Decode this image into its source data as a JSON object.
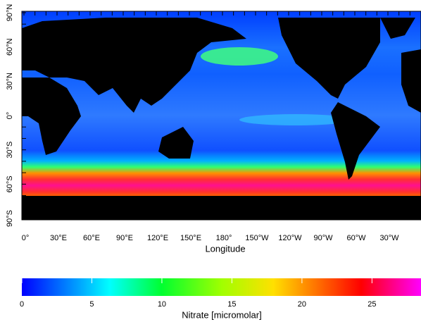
{
  "map": {
    "longitude_ticks": [
      "0°",
      "30°E",
      "60°E",
      "90°E",
      "120°E",
      "150°E",
      "180°",
      "150°W",
      "120°W",
      "90°W",
      "60°W",
      "30°W"
    ],
    "latitude_ticks": [
      "90°N",
      "60°N",
      "30°N",
      "0°",
      "30°S",
      "60°S",
      "90°S"
    ],
    "x_label": "Longitude"
  },
  "colorbar": {
    "range": [
      0,
      28.5
    ],
    "ticks": [
      0,
      5,
      10,
      15,
      20,
      25
    ],
    "label": "Nitrate [micromolar]"
  }
}
